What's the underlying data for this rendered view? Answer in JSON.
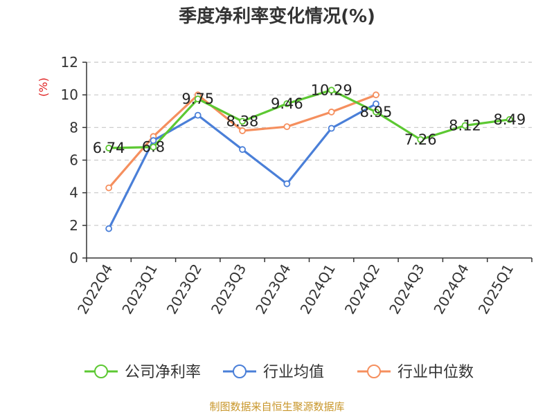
{
  "chart_data": {
    "type": "line",
    "title": "季度净利率变化情况(%)",
    "ylabel": "(%)",
    "categories": [
      "2022Q4",
      "2023Q1",
      "2023Q2",
      "2023Q3",
      "2023Q4",
      "2024Q1",
      "2024Q2",
      "2024Q3",
      "2024Q4",
      "2025Q1"
    ],
    "ylim": [
      0,
      12
    ],
    "yticks": [
      0,
      2,
      4,
      6,
      8,
      10,
      12
    ],
    "grid": true,
    "legend_position": "bottom",
    "series": [
      {
        "name": "公司净利率",
        "color": "#5cc832",
        "values": [
          6.74,
          6.8,
          9.75,
          8.38,
          9.46,
          10.29,
          8.95,
          7.26,
          8.12,
          8.49
        ],
        "labels": [
          "6.74",
          "6.8",
          "9.75",
          "8.38",
          "9.46",
          "10.29",
          "8.95",
          "7.26",
          "8.12",
          "8.49"
        ]
      },
      {
        "name": "行业均值",
        "color": "#4a7fd8",
        "values": [
          1.8,
          7.2,
          8.75,
          6.65,
          4.55,
          7.95,
          9.45,
          null,
          null,
          null
        ]
      },
      {
        "name": "行业中位数",
        "color": "#f58f5e",
        "values": [
          4.3,
          7.45,
          10.0,
          7.8,
          8.05,
          8.95,
          10.0,
          null,
          null,
          null
        ]
      }
    ]
  },
  "source": "制图数据来自恒生聚源数据库"
}
